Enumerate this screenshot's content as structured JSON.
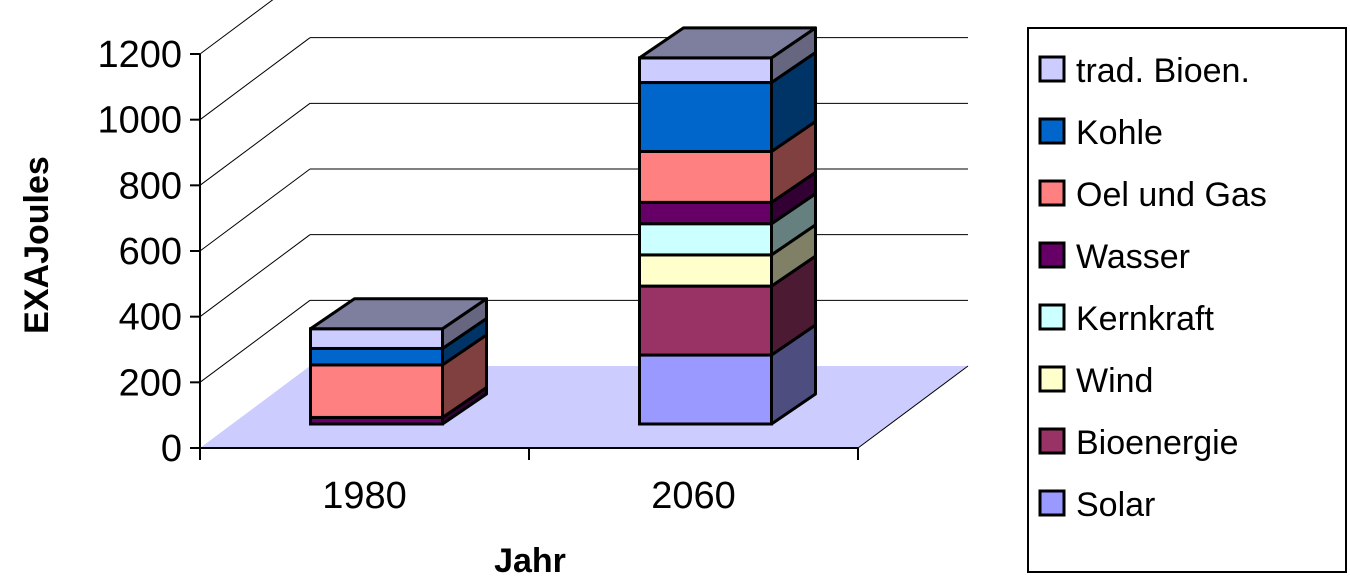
{
  "chart_data": {
    "type": "bar",
    "stacked": true,
    "three_d": true,
    "title": "",
    "xlabel": "Jahr",
    "ylabel": "EXAJoules",
    "ylim": [
      0,
      1200
    ],
    "yticks": [
      "0",
      "200",
      "400",
      "600",
      "800",
      "1000",
      "1200"
    ],
    "categories": [
      "1980",
      "2060"
    ],
    "grid": true,
    "floor_color": "#ccccff",
    "legend_position": "right",
    "series": [
      {
        "name": "Solar",
        "color": "#9999ff",
        "values": [
          0,
          210
        ]
      },
      {
        "name": "Bioenergie",
        "color": "#993366",
        "values": [
          0,
          210
        ]
      },
      {
        "name": "Wind",
        "color": "#ffffcc",
        "values": [
          0,
          95
        ]
      },
      {
        "name": "Kernkraft",
        "color": "#ccffff",
        "values": [
          0,
          95
        ]
      },
      {
        "name": "Wasser",
        "color": "#660066",
        "values": [
          20,
          65
        ]
      },
      {
        "name": "Oel und Gas",
        "color": "#ff8080",
        "values": [
          160,
          155
        ]
      },
      {
        "name": "Kohle",
        "color": "#0066cc",
        "values": [
          50,
          210
        ]
      },
      {
        "name": "trad. Bioen.",
        "color": "#ccccff",
        "values": [
          60,
          75
        ]
      }
    ]
  }
}
